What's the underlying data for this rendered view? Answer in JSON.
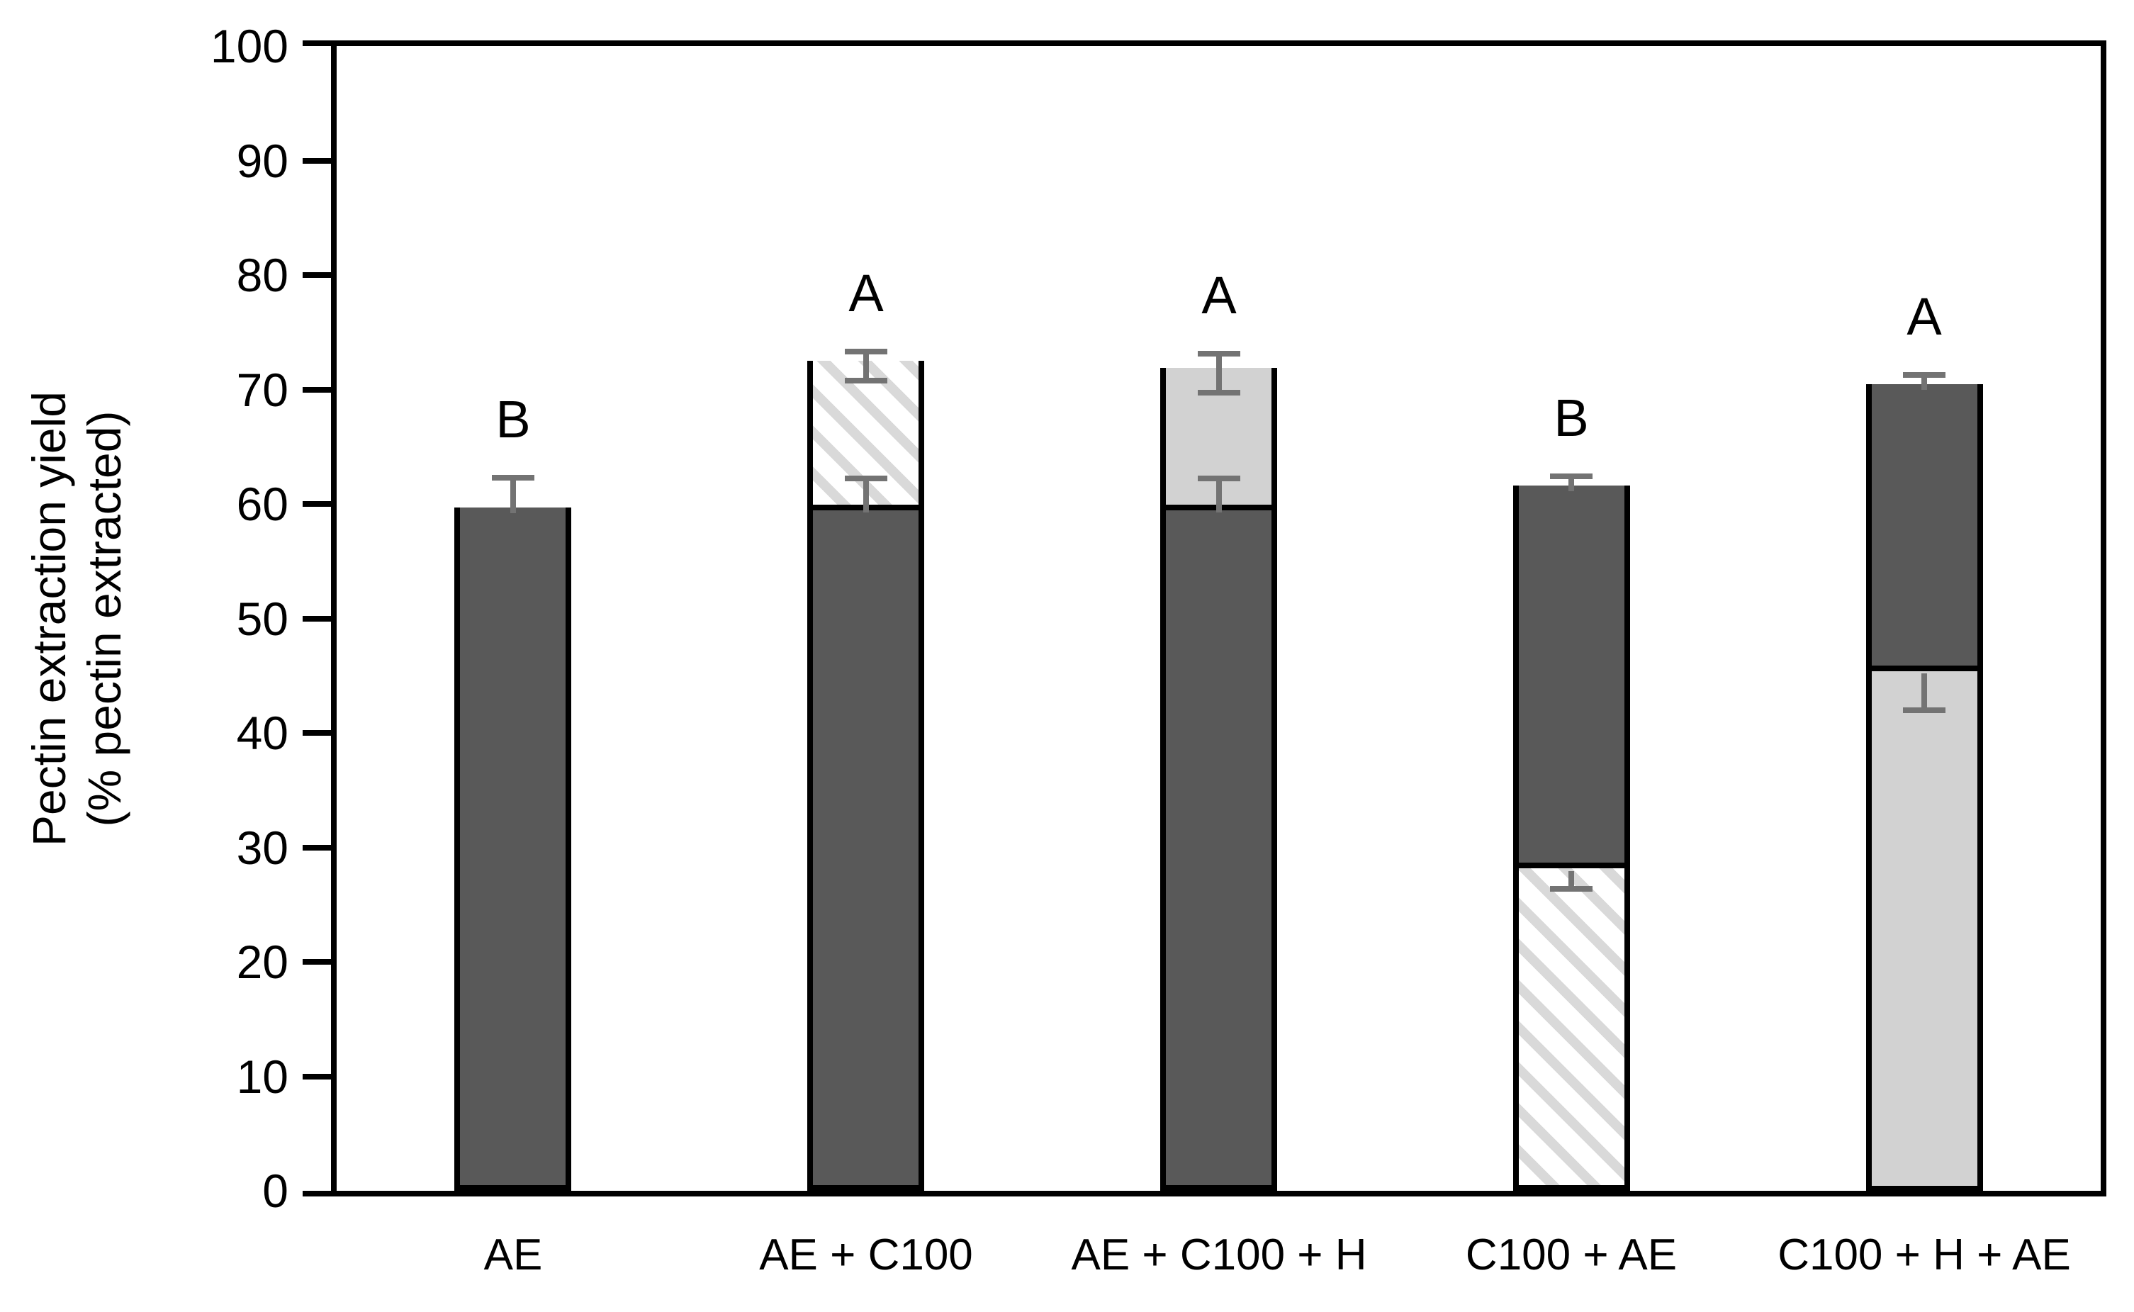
{
  "chart_data": {
    "type": "bar",
    "variant": "stacked-column",
    "title": "",
    "ylabel_line1": "Pectin extraction yield",
    "ylabel_line2": "(% pectin extracted)",
    "xlabel": "",
    "ylim": [
      0,
      100
    ],
    "ytick_interval": 10,
    "yticks": [
      0,
      10,
      20,
      30,
      40,
      50,
      60,
      70,
      80,
      90,
      100
    ],
    "grid": "off",
    "legend": "none",
    "frame": "full-box",
    "categories": [
      "AE",
      "AE + C100",
      "AE + C100 + H",
      "C100 + AE",
      "C100 + H + AE"
    ],
    "bars": [
      {
        "category": "AE",
        "letter": "B",
        "total": 59.2,
        "segments": [
          {
            "style": "dark",
            "from": 0,
            "to": 59.2
          }
        ],
        "error_bars": [
          {
            "from": 59.2,
            "to": 62.3,
            "caps": "far"
          }
        ]
      },
      {
        "category": "AE + C100",
        "letter": "A",
        "total": 72.0,
        "segments": [
          {
            "style": "dark",
            "from": 0,
            "to": 59.2
          },
          {
            "style": "hatch",
            "from": 59.2,
            "to": 72.0
          }
        ],
        "error_bars": [
          {
            "from": 59.2,
            "to": 62.2,
            "caps": "far"
          },
          {
            "from": 70.8,
            "to": 73.3,
            "caps": "both"
          }
        ]
      },
      {
        "category": "AE + C100 + H",
        "letter": "A",
        "total": 71.4,
        "segments": [
          {
            "style": "dark",
            "from": 0,
            "to": 59.2
          },
          {
            "style": "light",
            "from": 59.2,
            "to": 71.4
          }
        ],
        "error_bars": [
          {
            "from": 59.2,
            "to": 62.2,
            "caps": "far"
          },
          {
            "from": 69.7,
            "to": 73.1,
            "caps": "both"
          }
        ]
      },
      {
        "category": "C100 + AE",
        "letter": "B",
        "total": 61.1,
        "segments": [
          {
            "style": "hatch",
            "from": 0,
            "to": 27.9
          },
          {
            "style": "dark",
            "from": 27.9,
            "to": 61.1
          }
        ],
        "error_bars": [
          {
            "from": 27.9,
            "to": 26.4,
            "caps": "far"
          },
          {
            "from": 61.1,
            "to": 62.4,
            "caps": "far"
          }
        ]
      },
      {
        "category": "C100 + H + AE",
        "letter": "A",
        "total": 70.0,
        "segments": [
          {
            "style": "light",
            "from": 0,
            "to": 45.2
          },
          {
            "style": "dark",
            "from": 45.2,
            "to": 70.0
          }
        ],
        "error_bars": [
          {
            "from": 45.2,
            "to": 42.0,
            "caps": "far"
          },
          {
            "from": 70.0,
            "to": 71.3,
            "caps": "far"
          }
        ]
      }
    ],
    "colors": {
      "bar_dark": "#595959",
      "bar_light": "#d2d2d2",
      "hatch_stripe": "#d9d9d9",
      "hatch_background": "#ffffff",
      "bar_border": "#000000",
      "error_bar": "#737373",
      "axis": "#000000",
      "text": "#000000",
      "background": "#ffffff"
    }
  }
}
